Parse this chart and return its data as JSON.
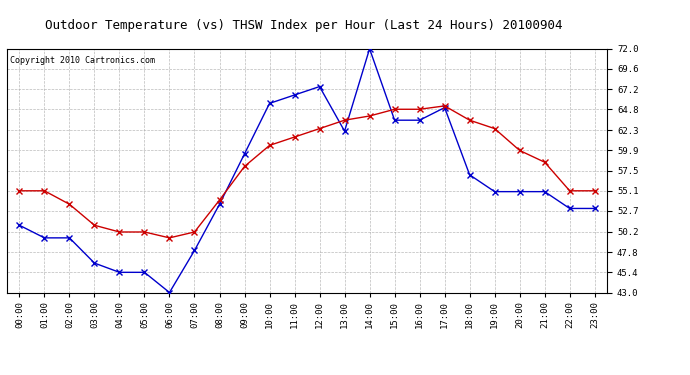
{
  "title": "Outdoor Temperature (vs) THSW Index per Hour (Last 24 Hours) 20100904",
  "copyright": "Copyright 2010 Cartronics.com",
  "hours": [
    0,
    1,
    2,
    3,
    4,
    5,
    6,
    7,
    8,
    9,
    10,
    11,
    12,
    13,
    14,
    15,
    16,
    17,
    18,
    19,
    20,
    21,
    22,
    23
  ],
  "blue_data": [
    51.0,
    49.5,
    49.5,
    46.5,
    45.4,
    45.4,
    43.0,
    48.0,
    53.5,
    59.5,
    65.5,
    66.5,
    67.5,
    62.2,
    72.0,
    63.5,
    63.5,
    65.0,
    57.0,
    55.0,
    55.0,
    55.0,
    53.0,
    53.0
  ],
  "red_data": [
    55.1,
    55.1,
    53.5,
    51.0,
    50.2,
    50.2,
    49.5,
    50.2,
    54.0,
    58.0,
    60.5,
    61.5,
    62.5,
    63.5,
    64.0,
    64.8,
    64.8,
    65.2,
    63.5,
    62.5,
    59.9,
    58.5,
    55.1,
    55.1
  ],
  "ylim": [
    43.0,
    72.0
  ],
  "yticks": [
    43.0,
    45.4,
    47.8,
    50.2,
    52.7,
    55.1,
    57.5,
    59.9,
    62.3,
    64.8,
    67.2,
    69.6,
    72.0
  ],
  "blue_color": "#0000cc",
  "red_color": "#cc0000",
  "bg_color": "#ffffff",
  "grid_color": "#aaaaaa",
  "title_fontsize": 9,
  "copyright_fontsize": 6,
  "tick_fontsize": 6.5
}
